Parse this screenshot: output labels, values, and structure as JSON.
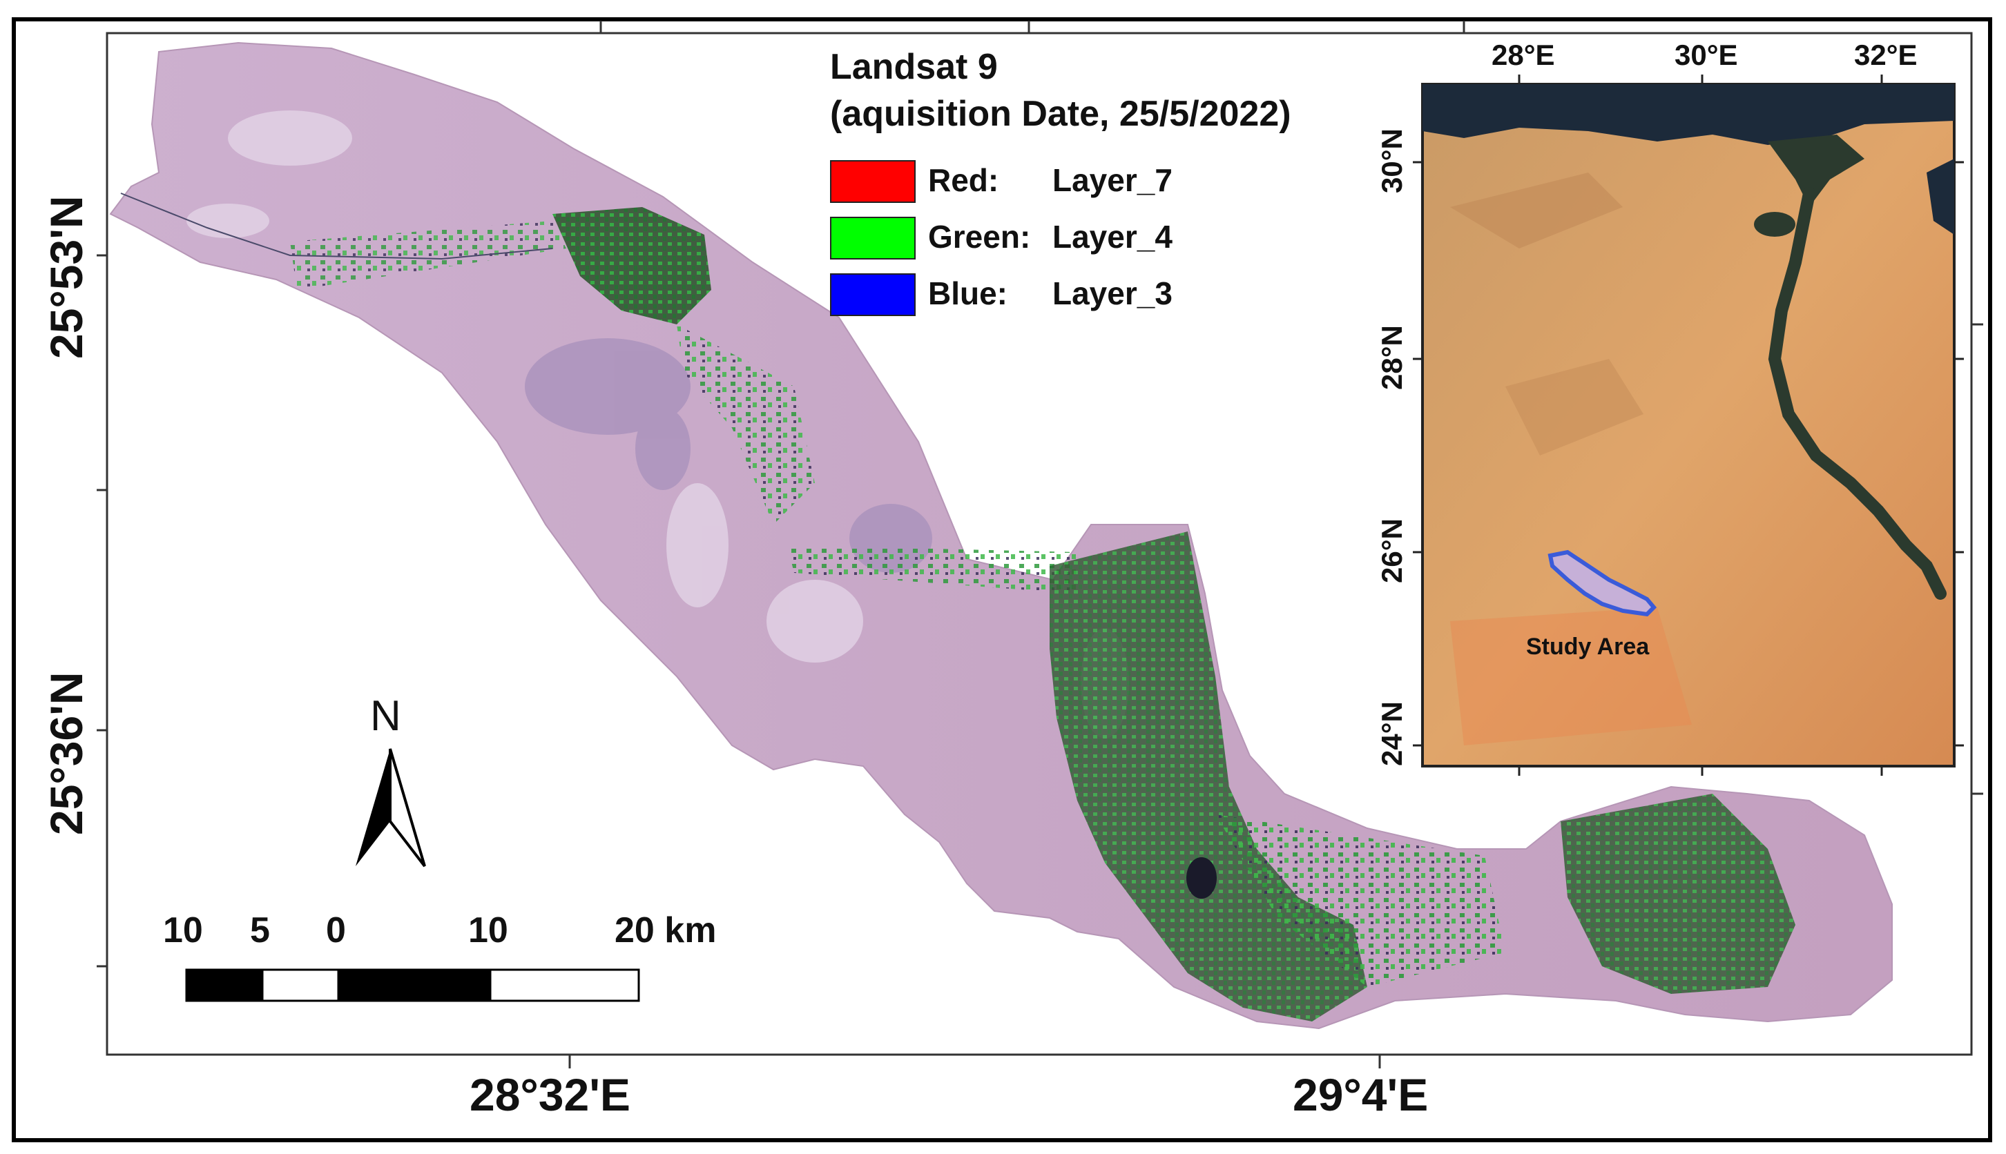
{
  "map": {
    "lon_labels": [
      "28°32'E",
      "29°4'E"
    ],
    "lat_labels": [
      "25°53'N",
      "25°36'N"
    ]
  },
  "legend": {
    "title_line1": "Landsat 9",
    "title_line2": "(aquisition Date, 25/5/2022)",
    "entries": [
      {
        "band": "Red:",
        "layer": "Layer_7",
        "color": "#ff0000"
      },
      {
        "band": "Green:",
        "layer": "Layer_4",
        "color": "#00ff00"
      },
      {
        "band": "Blue:",
        "layer": "Layer_3",
        "color": "#0000ff"
      }
    ]
  },
  "north_arrow": {
    "label": "N"
  },
  "scale_bar": {
    "labels": [
      "10",
      "5",
      "0",
      "10",
      "20 km"
    ]
  },
  "inset": {
    "lon_labels": [
      "28°E",
      "30°E",
      "32°E"
    ],
    "lat_labels": [
      "30°N",
      "28°N",
      "26°N",
      "24°N"
    ],
    "study_area_label": "Study Area",
    "study_area_color": "#3a5bd9"
  },
  "colors": {
    "image_base": "#c8a8c8",
    "vegetation": "#2e8b3a",
    "desert": "#d9a066",
    "nile": "#2b3a2e",
    "sea": "#1c2a3a"
  }
}
